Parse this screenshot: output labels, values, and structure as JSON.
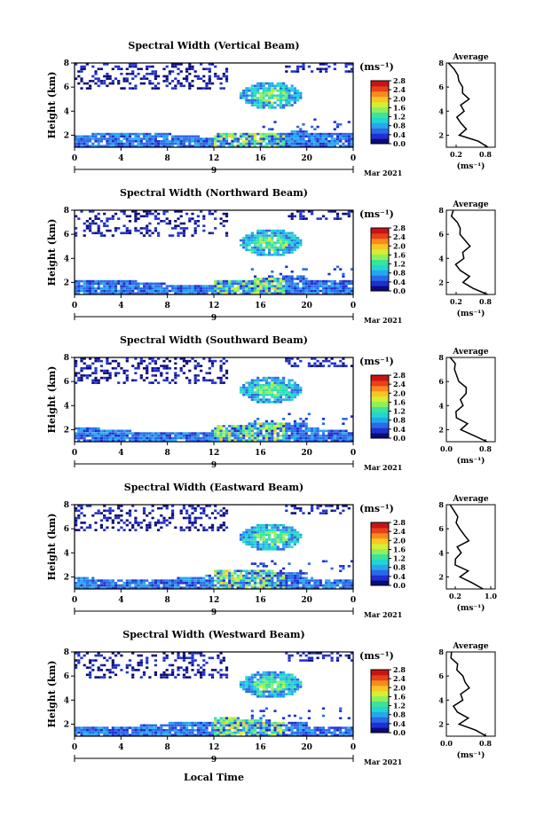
{
  "figure": {
    "xlabel": "Local Time",
    "date_label": "Mar 2021",
    "day_label": "9",
    "x_tick_labels": [
      "0",
      "4",
      "8",
      "12",
      "16",
      "20",
      "0"
    ],
    "y_label": "Height (km)",
    "y_tick_labels": [
      "2",
      "4",
      "6",
      "8"
    ],
    "colorbar_unit": "(ms⁻¹)",
    "colorbar_ticks": [
      "0.0",
      "0.4",
      "0.8",
      "1.2",
      "1.6",
      "2.0",
      "2.4",
      "2.8"
    ],
    "avg_title": "Average",
    "avg_y_ticks": [
      "2",
      "4",
      "6",
      "8"
    ],
    "avg_unit": "(ms⁻¹)",
    "colormap": [
      "#0b0b7a",
      "#1f2fd0",
      "#2a6ae8",
      "#25a7ee",
      "#21d6d0",
      "#3ce39a",
      "#8ff05e",
      "#d6ee33",
      "#f8c722",
      "#f88a1e",
      "#e8411c",
      "#c81414"
    ]
  },
  "panels": [
    {
      "title": "Spectral Width (Vertical Beam)",
      "avg_xticks": [
        "0.2",
        "0.8"
      ],
      "avg_xrange": [
        0,
        1.0
      ],
      "cb_labels": [
        "0.0",
        "0.4",
        "0.8",
        "1.2",
        "1.6",
        "2.0",
        "2.4",
        "2.8"
      ]
    },
    {
      "title": "Spectral Width (Northward Beam)",
      "avg_xticks": [
        "0.2",
        "0.8"
      ],
      "avg_xrange": [
        0,
        1.0
      ],
      "cb_labels": [
        "0.0",
        "0.4",
        "0.8",
        "1.2",
        "1.6",
        "2.0",
        "2.4",
        "2.8"
      ]
    },
    {
      "title": "Spectral Width (Southward Beam)",
      "avg_xticks": [
        "0.0",
        "0.8"
      ],
      "avg_xrange": [
        0,
        1.0
      ],
      "cb_labels": [
        "0.0",
        "0.4",
        "0.8",
        "1.2",
        "1.6",
        "2.0",
        "2.4",
        "2.8"
      ]
    },
    {
      "title": "Spectral Width (Eastward Beam)",
      "avg_xticks": [
        "0.2",
        "1.0"
      ],
      "avg_xrange": [
        0,
        1.1
      ],
      "cb_labels": [
        "0.0",
        "0.4",
        "0.8",
        "1.2",
        "1.6",
        "2.0",
        "2.4",
        "2.8"
      ]
    },
    {
      "title": "Spectral Width (Westward Beam)",
      "avg_xticks": [
        "0.0",
        "0.8"
      ],
      "avg_xrange": [
        0,
        1.0
      ],
      "cb_labels": [
        "0.0",
        "0.4",
        "0.8",
        "1.2",
        "1.6",
        "2.0",
        "2.4",
        "2.8"
      ]
    }
  ],
  "chart_data": {
    "type": "heatmap",
    "x_range_hours": [
      0,
      24
    ],
    "y_range_km": [
      1,
      8
    ],
    "value_range": [
      0.0,
      2.8
    ],
    "regions": [
      {
        "name": "boundary-layer",
        "t": [
          0,
          24
        ],
        "h": [
          1.0,
          2.2
        ],
        "value": 0.7
      },
      {
        "name": "cloud-layer",
        "t": [
          14.5,
          19.5
        ],
        "h": [
          4.2,
          6.6
        ],
        "value": 1.1
      }
    ],
    "average_profile": {
      "heights_km": [
        1.0,
        1.5,
        2.0,
        2.5,
        3.0,
        3.5,
        4.0,
        4.5,
        5.0,
        5.5,
        6.0,
        6.5,
        7.0,
        7.5,
        8.0
      ],
      "values": [
        0.8,
        0.6,
        0.3,
        0.45,
        0.25,
        0.2,
        0.35,
        0.3,
        0.45,
        0.35,
        0.3,
        0.25,
        0.2,
        0.15,
        0.1
      ]
    }
  }
}
